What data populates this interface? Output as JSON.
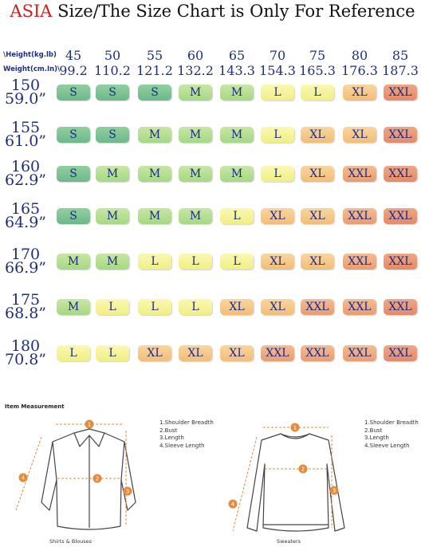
{
  "title": {
    "asia": "ASIA",
    "rest": " Size/The Size Chart is Only For Reference"
  },
  "header": {
    "height_label": "\\Height(kg.lb)",
    "weight_label": "Weight(cm.In)\\"
  },
  "weights_kg": [
    "45",
    "50",
    "55",
    "60",
    "65",
    "70",
    "75",
    "80",
    "85"
  ],
  "weights_lb": [
    "99.2",
    "110.2",
    "121.2",
    "132.2",
    "143.3",
    "154.3",
    "165.3",
    "176.3",
    "187.3"
  ],
  "rows": [
    {
      "cm": "150",
      "in": "59.0”",
      "sizes": [
        "S",
        "S",
        "S",
        "M",
        "M",
        "L",
        "L",
        "XL",
        "XXL"
      ]
    },
    {
      "cm": "155",
      "in": "61.0”",
      "sizes": [
        "S",
        "S",
        "M",
        "M",
        "M",
        "L",
        "XL",
        "XL",
        "XXL"
      ]
    },
    {
      "cm": "160",
      "in": "62.9”",
      "sizes": [
        "S",
        "M",
        "M",
        "M",
        "M",
        "L",
        "XL",
        "XXL",
        "XXL"
      ]
    },
    {
      "cm": "165",
      "in": "64.9”",
      "sizes": [
        "S",
        "M",
        "M",
        "M",
        "L",
        "XL",
        "XL",
        "XXL",
        "XXL"
      ]
    },
    {
      "cm": "170",
      "in": "66.9”",
      "sizes": [
        "M",
        "M",
        "L",
        "L",
        "L",
        "XL",
        "XL",
        "XXL",
        "XXL"
      ]
    },
    {
      "cm": "175",
      "in": "68.8”",
      "sizes": [
        "M",
        "L",
        "L",
        "L",
        "XL",
        "XL",
        "XXL",
        "XXL",
        "XXL"
      ]
    },
    {
      "cm": "180",
      "in": "70.8”",
      "sizes": [
        "L",
        "L",
        "XL",
        "XL",
        "XL",
        "XXL",
        "XXL",
        "XXL",
        "XXL"
      ]
    }
  ],
  "colors": {
    "title_accent": "#d21e1e",
    "label_text": "#1f2f7a",
    "S_g": [
      "#6cb88a",
      "#92cf9f"
    ],
    "M_g": [
      "#a6d884",
      "#c8e7a4"
    ],
    "L_g": [
      "#f0ee84",
      "#fbf8b4"
    ],
    "XL_g": [
      "#f3bd76",
      "#f8d6a0"
    ],
    "XXL_g": [
      "#ea9c70",
      "#f3bd94"
    ],
    "XXL_deep_g": [
      "#e48a68",
      "#efa784"
    ]
  },
  "measurement": {
    "section_title": "Item Measurement",
    "shirt": {
      "legend": [
        "1.Shoulder Breadth",
        "2.Bust",
        "3.Length",
        "4.Sleeve Length"
      ],
      "caption": "Shirts & Blouses"
    },
    "sweater": {
      "legend": [
        "1.Shoulder Breadth",
        "2.Bust",
        "3.Length",
        "4.Sleeve Length"
      ],
      "caption": "Sweaters"
    },
    "markers": [
      "1",
      "2",
      "3",
      "4"
    ]
  }
}
